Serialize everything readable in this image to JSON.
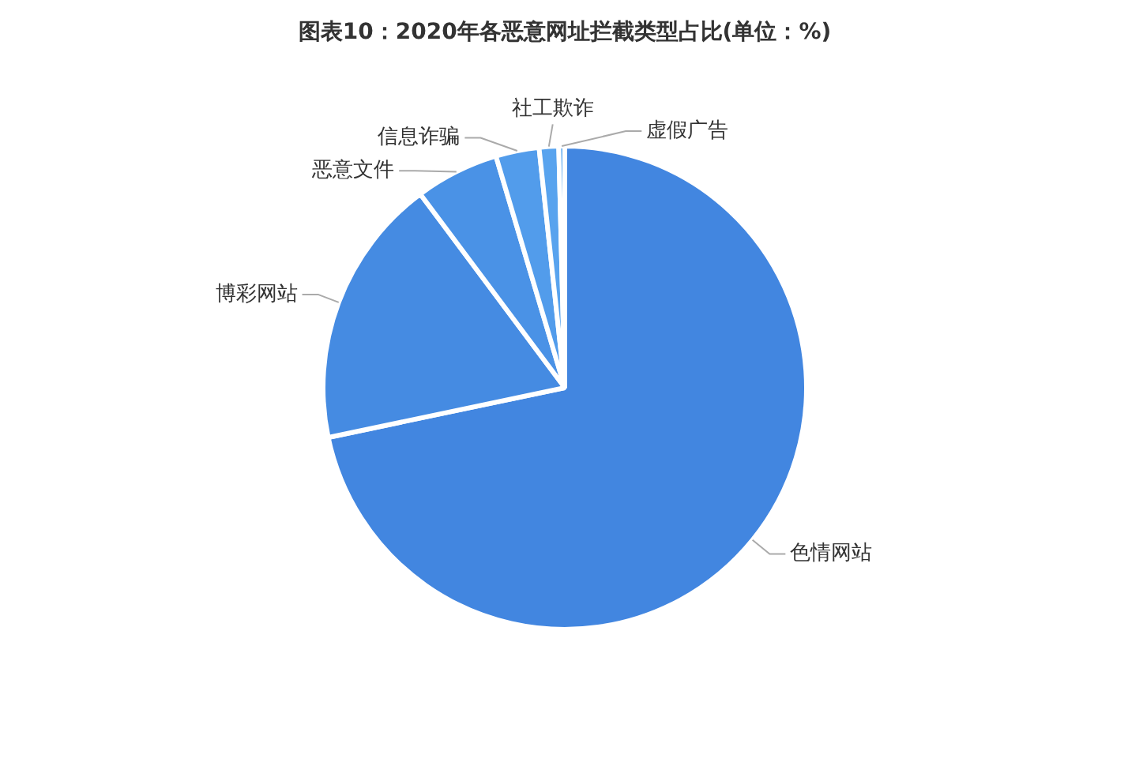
{
  "chart_data": {
    "type": "pie",
    "title": "图表10：2020年各恶意网址拦截类型占比(单位：%)",
    "categories": [
      "色情网站",
      "博彩网站",
      "恶意文件",
      "信息诈骗",
      "社工欺诈",
      "虚假广告"
    ],
    "values": [
      71.7,
      18.1,
      5.6,
      2.9,
      1.3,
      0.4
    ],
    "colors": [
      "#4286e0",
      "#458be2",
      "#4a92e6",
      "#529ceb",
      "#58a3ee",
      "#5eaaf0"
    ]
  }
}
